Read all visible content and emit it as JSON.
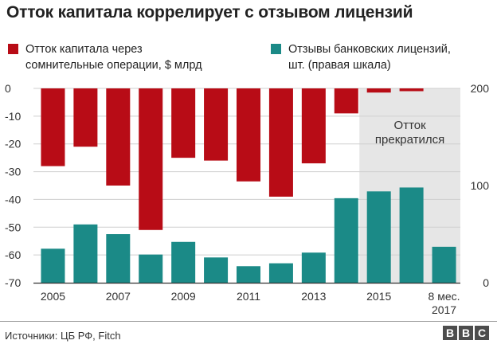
{
  "title": "Отток капитала коррелирует с отзывом лицензий",
  "legend": [
    {
      "label": "Отток капитала через\nсомнительные операции, $ млрд",
      "color": "#b80c16"
    },
    {
      "label": "Отзывы банковских лицензий,\nшт. (правая шкала)",
      "color": "#1b8a87"
    }
  ],
  "annotation": "Отток\nпрекратился",
  "source": "Источники: ЦБ РФ, Fitch",
  "logo": "BBC",
  "chart_data": {
    "type": "bar",
    "title": "Отток капитала коррелирует с отзывом лицензий",
    "categories": [
      "2005",
      "2006",
      "2007",
      "2008",
      "2009",
      "2010",
      "2011",
      "2012",
      "2013",
      "2014",
      "2015",
      "2016",
      "8 мес. 2017"
    ],
    "x_tick_labels": [
      "2005",
      "",
      "2007",
      "",
      "2009",
      "",
      "2011",
      "",
      "2013",
      "",
      "2015",
      "",
      "8 мес.\n2017"
    ],
    "series": [
      {
        "name": "Отток капитала через сомнительные операции, $ млрд",
        "axis": "left",
        "color": "#b80c16",
        "values": [
          -28,
          -21,
          -35,
          -51,
          -25,
          -26,
          -33.5,
          -39,
          -27,
          -9,
          -1.5,
          -1,
          0
        ]
      },
      {
        "name": "Отзывы банковских лицензий, шт. (правая шкала)",
        "axis": "right",
        "color": "#1b8a87",
        "values": [
          35,
          60,
          50,
          29,
          42,
          26,
          17,
          20,
          31,
          87,
          94,
          98,
          37
        ]
      }
    ],
    "left_axis": {
      "ylim": [
        -70,
        0
      ],
      "ticks": [
        0,
        -10,
        -20,
        -30,
        -40,
        -50,
        -60,
        -70
      ]
    },
    "right_axis": {
      "ylim": [
        0,
        200
      ],
      "ticks": [
        200,
        100,
        0
      ]
    },
    "shaded_region": {
      "from": "2015",
      "to": "8 мес. 2017",
      "color": "#e6e6e6"
    },
    "grid": true
  }
}
